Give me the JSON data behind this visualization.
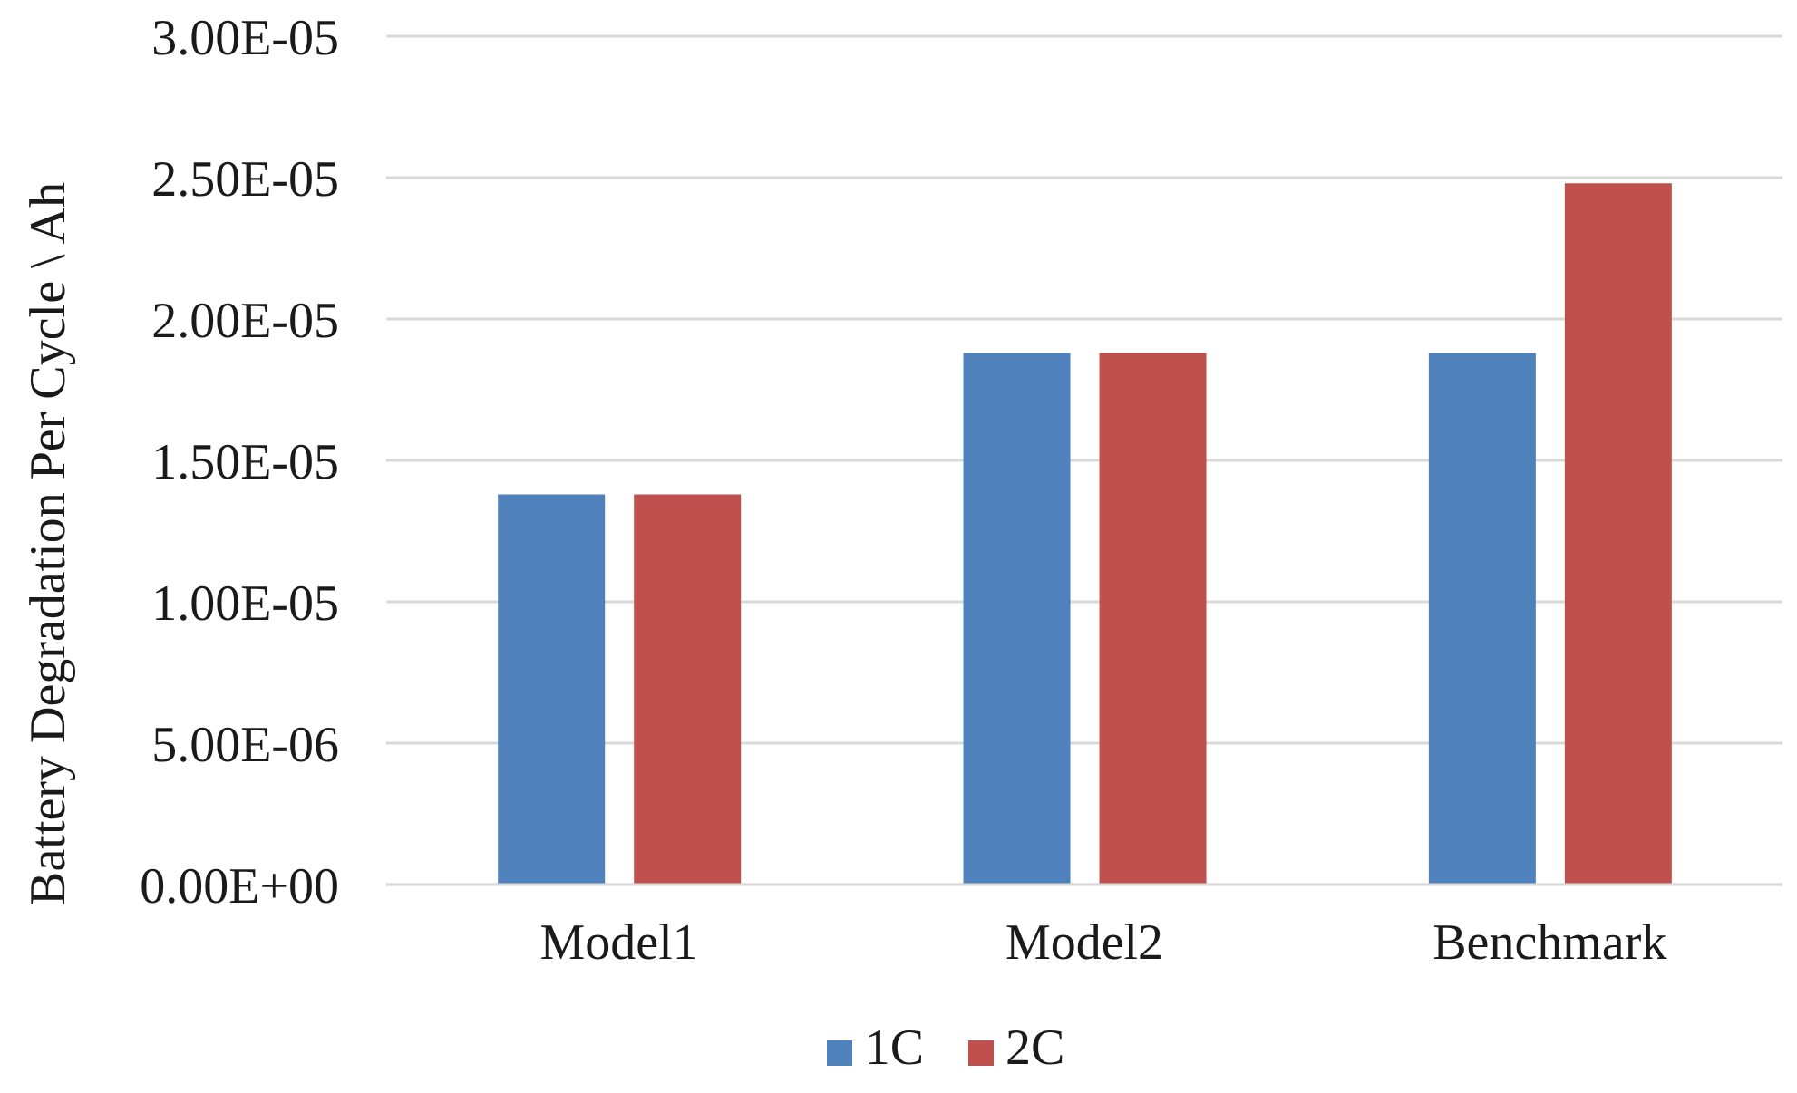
{
  "chart_data": {
    "type": "bar",
    "ylabel": "Battery Degradation Per Cycle \\ Ah",
    "categories": [
      "Model1",
      "Model2",
      "Benchmark"
    ],
    "series": [
      {
        "name": "1C",
        "color": "#4f81bd",
        "values": [
          1.38e-05,
          1.88e-05,
          1.88e-05
        ]
      },
      {
        "name": "2C",
        "color": "#c0504d",
        "values": [
          1.38e-05,
          1.88e-05,
          2.48e-05
        ]
      }
    ],
    "ylim": [
      0,
      3e-05
    ],
    "yticks": [
      {
        "value": 0,
        "label": "0.00E+00"
      },
      {
        "value": 5e-06,
        "label": "5.00E-06"
      },
      {
        "value": 1e-05,
        "label": "1.00E-05"
      },
      {
        "value": 1.5e-05,
        "label": "1.50E-05"
      },
      {
        "value": 2e-05,
        "label": "2.00E-05"
      },
      {
        "value": 2.5e-05,
        "label": "2.50E-05"
      },
      {
        "value": 3e-05,
        "label": "3.00E-05"
      }
    ],
    "grid": "y",
    "legend": "bottom"
  }
}
